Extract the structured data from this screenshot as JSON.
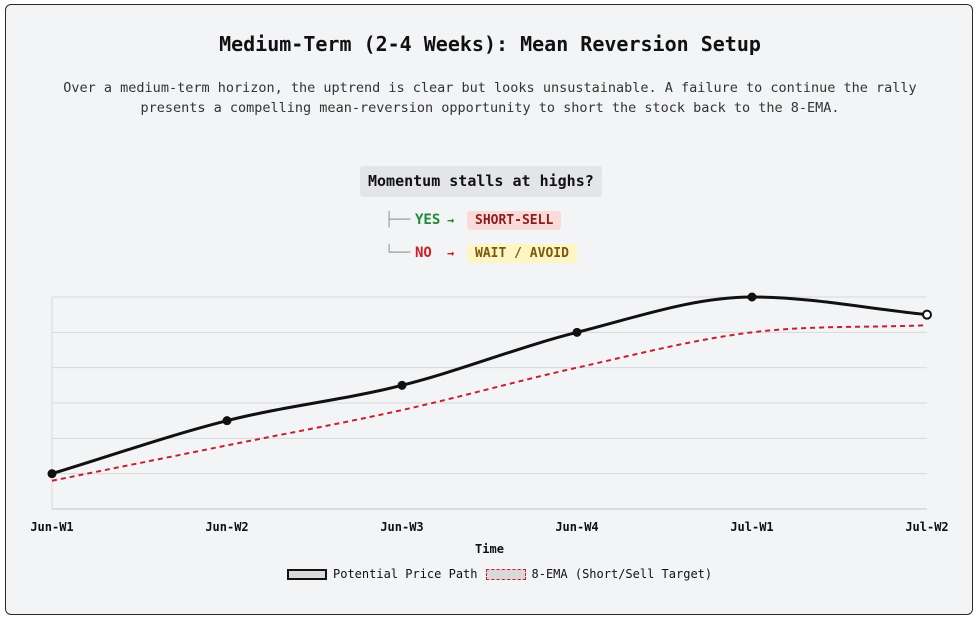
{
  "header": {
    "title": "Medium-Term (2-4 Weeks): Mean Reversion Setup",
    "description": "Over a medium-term horizon, the uptrend is clear but looks unsustainable. A failure to continue the rally presents a compelling mean-reversion opportunity to short the stock back to the 8-EMA."
  },
  "decision": {
    "question": "Momentum stalls at highs?",
    "yes_label": "YES",
    "yes_arrow": "→",
    "yes_action": "SHORT-SELL",
    "no_label": "NO",
    "no_arrow": "→",
    "no_action": "WAIT / AVOID",
    "yes_tree": "├──",
    "no_tree": "└──"
  },
  "colors": {
    "price": "#111111",
    "ema": "#c8202a",
    "grid": "#d6d8dc",
    "yes": "#1f8a3a",
    "no": "#c8202a"
  },
  "chart_data": {
    "type": "line",
    "categories": [
      "Jun-W1",
      "Jun-W2",
      "Jun-W3",
      "Jun-W4",
      "Jul-W1",
      "Jul-W2"
    ],
    "series": [
      {
        "name": "Potential Price Path",
        "values": [
          1,
          2.5,
          3.5,
          5,
          6,
          5.5
        ],
        "markers": true
      },
      {
        "name": "8-EMA (Short/Sell Target)",
        "values": [
          0.8,
          1.8,
          2.8,
          4.0,
          5.0,
          5.2
        ],
        "markers": false,
        "dashed": true
      }
    ],
    "xlabel": "Time",
    "ylabel": "",
    "ylim": [
      0,
      6
    ],
    "y_ticks_shown": false,
    "grid": true,
    "legend": "bottom-center"
  }
}
